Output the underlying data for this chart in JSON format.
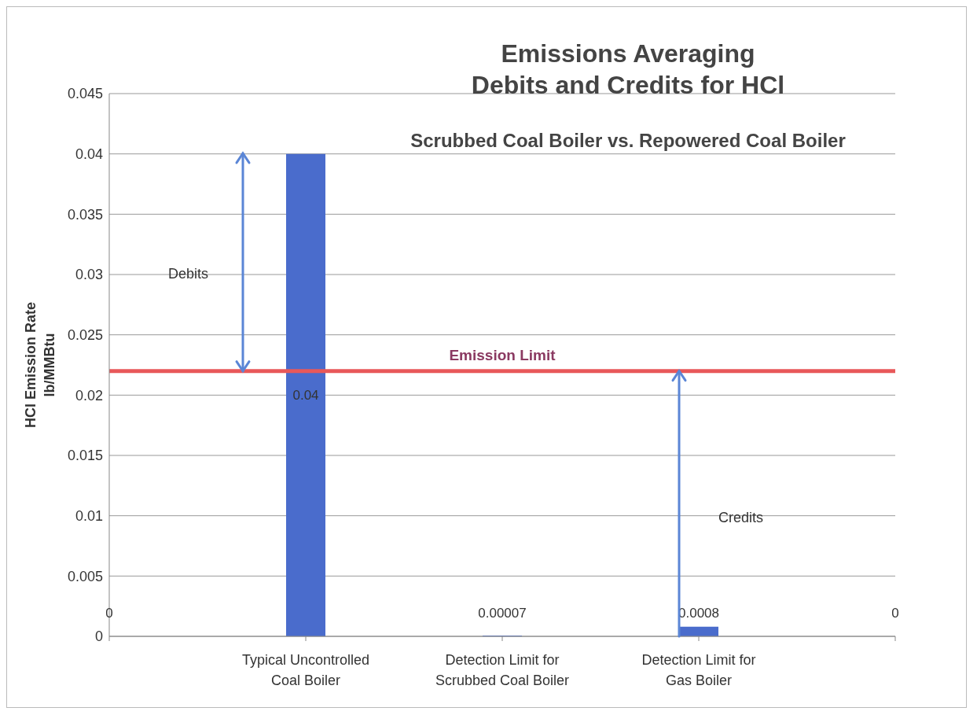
{
  "chart_data": {
    "type": "bar",
    "title": "Emissions Averaging\nDebits and Credits for HCl",
    "subtitle": "Scrubbed Coal Boiler vs. Repowered Coal Boiler",
    "ylabel": "HCl Emission Rate\nlb/MMBtu",
    "categories": [
      null,
      "Typical Uncontrolled\nCoal Boiler",
      "Detection Limit for\nScrubbed Coal Boiler",
      "Detection Limit for\nGas Boiler",
      null
    ],
    "values": [
      0,
      0.04,
      7e-05,
      0.0008,
      0
    ],
    "color": "#4a6ccc",
    "value_labels": [
      "0",
      "0.04",
      "0.00007",
      "0.0008",
      "0"
    ],
    "ylim": [
      0,
      0.045
    ],
    "yticks": [
      0,
      0.005,
      0.01,
      0.015,
      0.02,
      0.025,
      0.03,
      0.035,
      0.04,
      0.045
    ],
    "grid": "y",
    "ref_lines": [
      {
        "axis": "y",
        "value": 0.022,
        "label": "Emission Limit",
        "color": "#e8585a"
      }
    ],
    "annotations": [
      "Debits",
      "Credits"
    ]
  }
}
